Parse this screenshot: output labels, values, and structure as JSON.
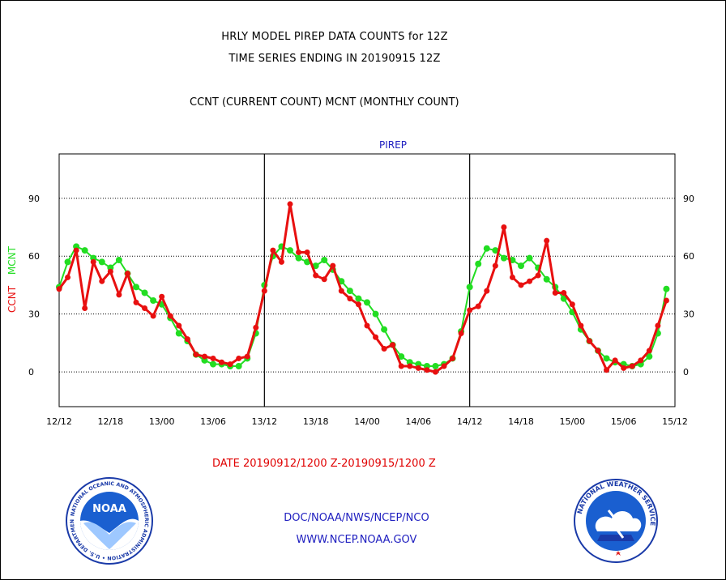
{
  "titles": {
    "line1": "HRLY MODEL PIREP DATA COUNTS for 12Z",
    "line2": "TIME SERIES ENDING IN 20190915 12Z",
    "subtitle": "CCNT (CURRENT COUNT) MCNT (MONTHLY COUNT)"
  },
  "footer": {
    "date_range": "DATE 20190912/1200 Z-20190915/1200 Z",
    "org": "DOC/NOAA/NWS/NCEP/NCO",
    "url": "WWW.NCEP.NOAA.GOV"
  },
  "logos": {
    "noaa": {
      "badge_text": "NOAA",
      "ring_text": "NATIONAL OCEANIC AND ATMOSPHERIC ADMINISTRATION • U.S. DEPARTMENT OF COMMERCE"
    },
    "nws": {
      "ring_text": "NATIONAL WEATHER SERVICE"
    }
  },
  "colors": {
    "ccnt": "#e81010",
    "mcnt": "#22dd22",
    "label_blue": "#2020c0"
  },
  "chart_data": {
    "type": "line",
    "panel_label": "PIREP",
    "ylabel_parts": [
      {
        "text": "CCNT",
        "color": "#e81010"
      },
      {
        "text": "MCNT",
        "color": "#22dd22"
      }
    ],
    "ylim": [
      -18,
      113
    ],
    "yticks": [
      0,
      30,
      60,
      90
    ],
    "x_range": [
      0,
      72
    ],
    "x_ticks": [
      {
        "x": 0,
        "label": "12/12"
      },
      {
        "x": 6,
        "label": "12/18"
      },
      {
        "x": 12,
        "label": "13/00"
      },
      {
        "x": 18,
        "label": "13/06"
      },
      {
        "x": 24,
        "label": "13/12"
      },
      {
        "x": 30,
        "label": "13/18"
      },
      {
        "x": 36,
        "label": "14/00"
      },
      {
        "x": 42,
        "label": "14/06"
      },
      {
        "x": 48,
        "label": "14/12"
      },
      {
        "x": 54,
        "label": "14/18"
      },
      {
        "x": 60,
        "label": "15/00"
      },
      {
        "x": 66,
        "label": "15/06"
      },
      {
        "x": 72,
        "label": "15/12"
      }
    ],
    "day_dividers": [
      24,
      48
    ],
    "grid_y": true,
    "series": [
      {
        "name": "CCNT",
        "values": [
          43,
          49,
          63,
          33,
          57,
          47,
          52,
          40,
          51,
          36,
          33,
          29,
          39,
          29,
          24,
          17,
          9,
          8,
          7,
          5,
          4,
          7,
          8,
          23,
          42,
          63,
          57,
          87,
          62,
          62,
          50,
          48,
          55,
          42,
          38,
          35,
          24,
          18,
          12,
          14,
          3,
          3,
          2,
          1,
          0,
          3,
          7,
          20,
          32,
          34,
          42,
          55,
          75,
          49,
          45,
          47,
          50,
          68,
          41,
          41,
          35,
          24,
          16,
          11,
          1,
          6,
          2,
          3,
          6,
          11,
          24,
          37
        ]
      },
      {
        "name": "MCNT",
        "values": [
          44,
          57,
          65,
          63,
          59,
          57,
          54,
          58,
          51,
          44,
          41,
          37,
          35,
          28,
          20,
          16,
          9,
          6,
          4,
          4,
          3,
          3,
          7,
          20,
          45,
          60,
          65,
          63,
          59,
          57,
          55,
          58,
          53,
          47,
          42,
          38,
          36,
          30,
          22,
          14,
          8,
          5,
          4,
          3,
          3,
          4,
          7,
          21,
          44,
          56,
          64,
          63,
          59,
          58,
          55,
          59,
          54,
          48,
          44,
          38,
          31,
          22,
          16,
          11,
          7,
          5,
          4,
          3,
          4,
          8,
          20,
          43
        ]
      }
    ]
  }
}
